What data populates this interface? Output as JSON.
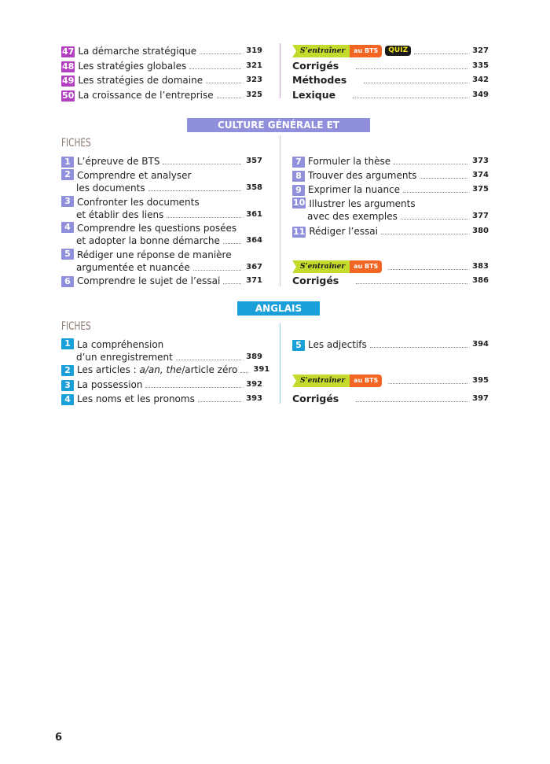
{
  "colors": {
    "strategy": "#b23fbf",
    "culture": "#8f8fdb",
    "anglais": "#1a9fd8",
    "entrainer_green": "#c4da2c",
    "entrainer_orange": "#f26522"
  },
  "strategy": {
    "items": [
      {
        "num": "47",
        "title": "La démarche stratégique",
        "page": "319"
      },
      {
        "num": "48",
        "title": "Les stratégies globales",
        "page": "321"
      },
      {
        "num": "49",
        "title": "Les stratégies de domaine",
        "page": "323"
      },
      {
        "num": "50",
        "title": "La croissance de l’entreprise",
        "page": "325"
      }
    ],
    "entrainer": {
      "label": "S’entraîner",
      "tag": "au BTS",
      "quiz": "QUIZ",
      "page": "327"
    },
    "extras": [
      {
        "title": "Corrigés",
        "page": "335"
      },
      {
        "title": "Méthodes",
        "page": "342"
      },
      {
        "title": "Lexique",
        "page": "349"
      }
    ]
  },
  "culture": {
    "heading": "CULTURE GÉNÉRALE ET EXPRESSION",
    "fiches": "FICHES",
    "items": [
      {
        "num": "1",
        "line1": "L’épreuve de BTS",
        "line2": "",
        "page": "357"
      },
      {
        "num": "2",
        "line1": "Comprendre et analyser",
        "line2": "les documents",
        "page": "358"
      },
      {
        "num": "3",
        "line1": "Confronter les documents",
        "line2": "et établir des liens",
        "page": "361"
      },
      {
        "num": "4",
        "line1": "Comprendre les questions posées",
        "line2": "et adopter la bonne démarche",
        "page": "364"
      },
      {
        "num": "5",
        "line1": "Rédiger une réponse de manière",
        "line2": "argumentée et nuancée",
        "page": "367"
      },
      {
        "num": "6",
        "line1": "Comprendre le sujet de l’essai",
        "line2": "",
        "page": "371"
      },
      {
        "num": "7",
        "line1": "Formuler la thèse",
        "line2": "",
        "page": "373"
      },
      {
        "num": "8",
        "line1": "Trouver des arguments",
        "line2": "",
        "page": "374"
      },
      {
        "num": "9",
        "line1": "Exprimer la nuance",
        "line2": "",
        "page": "375"
      },
      {
        "num": "10",
        "line1": "Illustrer les arguments",
        "line2": "avec des exemples",
        "page": "377"
      },
      {
        "num": "11",
        "line1": "Rédiger l’essai",
        "line2": "",
        "page": "380"
      }
    ],
    "entrainer": {
      "label": "S’entraîner",
      "tag": "au BTS",
      "page": "383"
    },
    "corriges": {
      "title": "Corrigés",
      "page": "386"
    }
  },
  "anglais": {
    "heading": "ANGLAIS",
    "fiches": "FICHES",
    "items": [
      {
        "num": "1",
        "line1": "La compréhension",
        "line2": "d’un enregistrement",
        "page": "389"
      },
      {
        "num": "2",
        "line1": "Les articles : ",
        "italic1": "a/an, the",
        "rest": "/article zéro",
        "page": "391"
      },
      {
        "num": "3",
        "line1": "La possession",
        "page": "392"
      },
      {
        "num": "4",
        "line1": "Les noms et les pronoms",
        "page": "393"
      },
      {
        "num": "5",
        "line1": "Les adjectifs",
        "page": "394"
      }
    ],
    "entrainer": {
      "label": "S’entraîner",
      "tag": "au BTS",
      "page": "395"
    },
    "corriges": {
      "title": "Corrigés",
      "page": "397"
    }
  },
  "page_number": "6"
}
